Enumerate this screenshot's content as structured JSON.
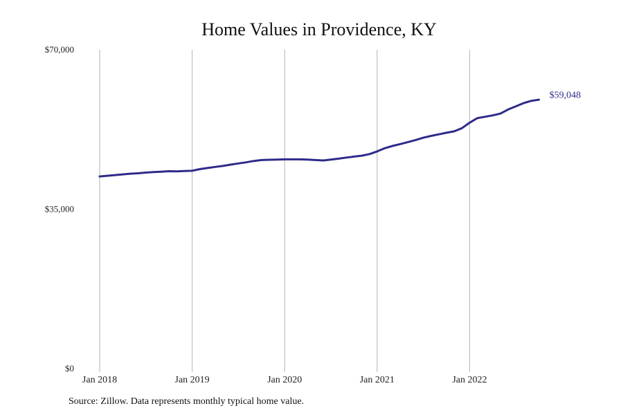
{
  "chart_data": {
    "type": "line",
    "title": "Home Values in Providence, KY",
    "xlabel": "",
    "ylabel": "",
    "ylim": [
      0,
      70000
    ],
    "y_ticks": [
      "$70,000",
      "$35,000",
      "$0"
    ],
    "x_ticks": [
      "Jan 2018",
      "Jan 2019",
      "Jan 2020",
      "Jan 2021",
      "Jan 2022"
    ],
    "grid": "vertical",
    "line_color": "#2e2a8a",
    "end_label": "$59,048",
    "series": [
      {
        "x": [
          "2018-01",
          "2018-02",
          "2018-03",
          "2018-04",
          "2018-05",
          "2018-06",
          "2018-07",
          "2018-08",
          "2018-09",
          "2018-10",
          "2018-11",
          "2018-12",
          "2019-01",
          "2019-02",
          "2019-03",
          "2019-04",
          "2019-05",
          "2019-06",
          "2019-07",
          "2019-08",
          "2019-09",
          "2019-10",
          "2019-11",
          "2019-12",
          "2020-01",
          "2020-02",
          "2020-03",
          "2020-04",
          "2020-05",
          "2020-06",
          "2020-07",
          "2020-08",
          "2020-09",
          "2020-10",
          "2020-11",
          "2020-12",
          "2021-01",
          "2021-02",
          "2021-03",
          "2021-04",
          "2021-05",
          "2021-06",
          "2021-07",
          "2021-08",
          "2021-09",
          "2021-10",
          "2021-11",
          "2021-12",
          "2022-01",
          "2022-02",
          "2022-03",
          "2022-04",
          "2022-05",
          "2022-06",
          "2022-07",
          "2022-08",
          "2022-09",
          "2022-10"
        ],
        "values": [
          42200,
          42350,
          42500,
          42650,
          42800,
          42900,
          43050,
          43150,
          43250,
          43350,
          43300,
          43400,
          43450,
          43800,
          44050,
          44300,
          44500,
          44800,
          45050,
          45300,
          45600,
          45800,
          45850,
          45900,
          45950,
          45950,
          45950,
          45900,
          45800,
          45700,
          45900,
          46100,
          46350,
          46550,
          46750,
          47100,
          47700,
          48400,
          48900,
          49300,
          49750,
          50200,
          50700,
          51100,
          51450,
          51800,
          52100,
          52800,
          54000,
          55000,
          55300,
          55600,
          56000,
          56900,
          57600,
          58300,
          58800,
          59048
        ]
      }
    ]
  },
  "source_note": "Source: Zillow. Data represents monthly typical home value."
}
